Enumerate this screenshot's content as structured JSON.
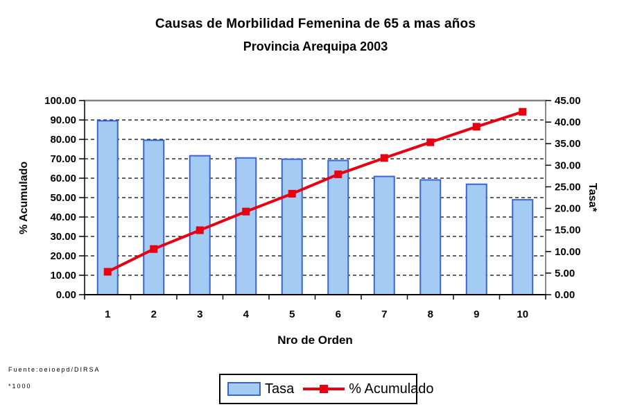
{
  "chart": {
    "title": "Causas de Morbilidad Femenina de 65 a mas años",
    "subtitle": "Provincia Arequipa 2003"
  },
  "chart_data": {
    "type": "bar+line (pareto combo)",
    "title": "Causas de Morbilidad Femenina de 65 a mas años",
    "subtitle": "Provincia Arequipa 2003",
    "categories": [
      "1",
      "2",
      "3",
      "4",
      "5",
      "6",
      "7",
      "8",
      "9",
      "10"
    ],
    "xlabel": "Nro de Orden",
    "left_axis": {
      "label": "% Acumulado",
      "min": 0,
      "max": 100,
      "step": 10,
      "tick_format": "2-decimals"
    },
    "right_axis": {
      "label": "Tasa*",
      "min": 0,
      "max": 45,
      "step": 5,
      "tick_format": "2-decimals"
    },
    "series": [
      {
        "name": "Tasa",
        "type": "bar",
        "axis": "right",
        "color": "#A4CBF4",
        "border_color": "#3C63D6",
        "values": [
          40.3,
          35.8,
          32.2,
          31.7,
          31.4,
          31.1,
          27.4,
          26.6,
          25.6,
          22.0
        ]
      },
      {
        "name": "% Acumulado",
        "type": "line",
        "axis": "left",
        "color": "#E60012",
        "marker": "square",
        "values": [
          11.8,
          23.5,
          33.2,
          42.8,
          52.0,
          62.0,
          70.4,
          78.5,
          86.5,
          94.2
        ]
      }
    ],
    "grid": "horizontal dashed",
    "legend_position": "bottom-center",
    "footnotes": {
      "source": "Fuente:oeioepd/DIRSA",
      "scale": "*1000"
    }
  }
}
